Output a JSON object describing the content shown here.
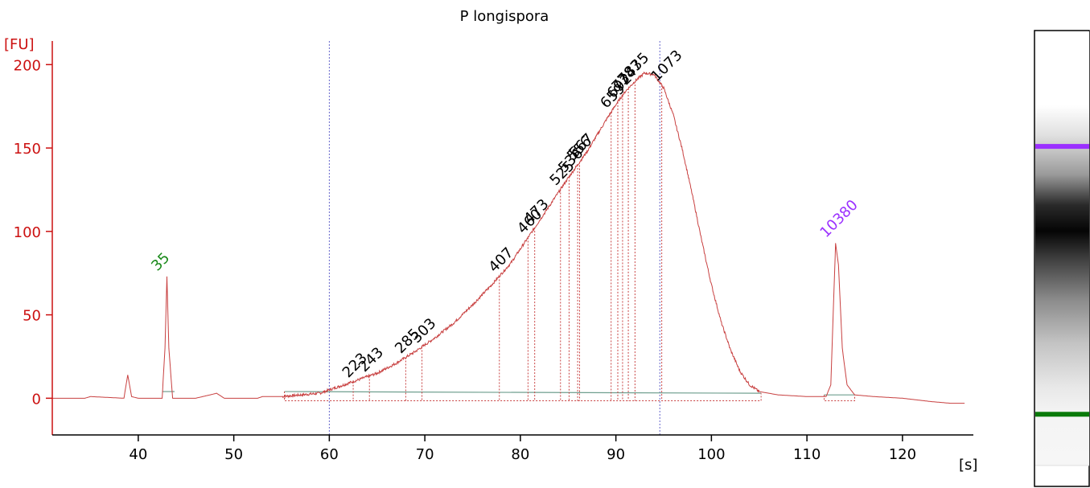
{
  "chart_data": {
    "type": "line",
    "title": "P longispora",
    "xlabel": "[s]",
    "ylabel": "[FU]",
    "xlim": [
      31,
      127
    ],
    "ylim": [
      -22,
      218
    ],
    "grid": false,
    "legend": "none",
    "x_ticks": [
      40,
      50,
      60,
      70,
      80,
      90,
      100,
      110,
      120
    ],
    "y_ticks": [
      0,
      50,
      100,
      150,
      200
    ],
    "markers": [
      {
        "label": "35",
        "x": 43.0,
        "y": 73,
        "kind": "lower"
      },
      {
        "label": "10380",
        "x": 113.0,
        "y": 93,
        "kind": "upper"
      }
    ],
    "peaks": [
      {
        "label": "223",
        "x": 62.5,
        "y": 12
      },
      {
        "label": "243",
        "x": 64.2,
        "y": 15
      },
      {
        "label": "285",
        "x": 68.0,
        "y": 28
      },
      {
        "label": "303",
        "x": 69.7,
        "y": 37
      },
      {
        "label": "407",
        "x": 77.8,
        "y": 80
      },
      {
        "label": "460",
        "x": 80.8,
        "y": 101
      },
      {
        "label": "473",
        "x": 81.5,
        "y": 106
      },
      {
        "label": "525",
        "x": 84.2,
        "y": 127
      },
      {
        "label": "536",
        "x": 85.1,
        "y": 132
      },
      {
        "label": "556",
        "x": 86.0,
        "y": 137
      },
      {
        "label": "567",
        "x": 86.2,
        "y": 141
      },
      {
        "label": "659",
        "x": 89.5,
        "y": 178
      },
      {
        "label": "692",
        "x": 90.2,
        "y": 183
      },
      {
        "label": "734",
        "x": 90.7,
        "y": 189
      },
      {
        "label": "787",
        "x": 91.3,
        "y": 192
      },
      {
        "label": "835",
        "x": 92.0,
        "y": 195
      },
      {
        "label": "1073",
        "x": 94.8,
        "y": 189
      }
    ],
    "series": [
      {
        "trace": "electropherogram",
        "x": [
          31,
          34.4,
          35,
          38.5,
          38.7,
          38.9,
          39.3,
          40,
          42.5,
          42.8,
          43.0,
          43.2,
          43.6,
          46,
          47.5,
          48.2,
          49,
          52.5,
          53,
          55,
          57,
          59,
          61,
          63,
          65,
          67,
          69,
          71,
          73,
          75,
          77,
          79,
          81,
          83,
          85,
          87,
          89,
          90,
          91,
          92,
          93,
          94,
          95,
          96,
          97,
          98,
          99,
          100,
          101,
          102,
          103,
          104,
          105,
          107,
          110,
          112,
          112.5,
          112.8,
          113.0,
          113.3,
          113.7,
          114.2,
          115,
          117,
          120,
          123,
          125,
          126.5
        ],
        "y": [
          0,
          0,
          1,
          0,
          7,
          14,
          1,
          0,
          0,
          30,
          73,
          30,
          0,
          0,
          2,
          3,
          0,
          0,
          1,
          1,
          2,
          3,
          7,
          11,
          15,
          21,
          28,
          36,
          45,
          56,
          68,
          81,
          98,
          115,
          132,
          148,
          167,
          176,
          184,
          190,
          195,
          194,
          186,
          170,
          148,
          122,
          94,
          68,
          46,
          29,
          16,
          8,
          4,
          2,
          1,
          1,
          8,
          60,
          93,
          80,
          30,
          8,
          2,
          1,
          0,
          -2,
          -3,
          -3
        ]
      }
    ],
    "baseline": [
      {
        "x": [
          55.3,
          105.2
        ],
        "y": [
          4,
          3
        ]
      },
      {
        "x": [
          111.8,
          115.0
        ],
        "y": [
          2,
          2
        ]
      },
      {
        "x": [
          42.5,
          43.8
        ],
        "y": [
          4,
          4
        ]
      }
    ],
    "ladder": {
      "bands": [
        {
          "position": 0.265,
          "color": "#9b30ff"
        },
        {
          "position": 0.882,
          "color": "#0a7a0a"
        }
      ],
      "smear_center": 0.45
    },
    "colors": {
      "trace": "#c84040",
      "axis": "#cc1111",
      "x_axis_text": "#000000",
      "y_axis_text": "#cc1111",
      "lower_marker": "#1a8a1a",
      "upper_marker": "#9b30ff",
      "baseline": "#6f9f8f",
      "time_window": "#6666cc",
      "peak_lines": "#c84040"
    },
    "time_window": [
      60,
      94.6
    ]
  }
}
